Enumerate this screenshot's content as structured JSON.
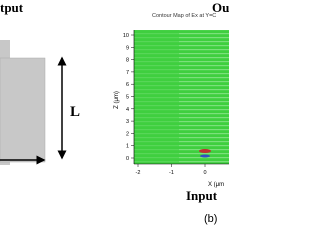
{
  "left_panel": {
    "output_label": "tput",
    "length_label": "L"
  },
  "right_panel": {
    "title": "Contour Map of Ex at Y=C",
    "output_label": "Ou",
    "y_label": "Z (μm)",
    "x_label": "X (μm",
    "input_label": "Input",
    "panel_label": "(b)",
    "yticks": [
      0,
      1,
      2,
      3,
      4,
      5,
      6,
      7,
      8,
      9,
      10
    ],
    "xticks": [
      -2,
      -1,
      0
    ]
  }
}
